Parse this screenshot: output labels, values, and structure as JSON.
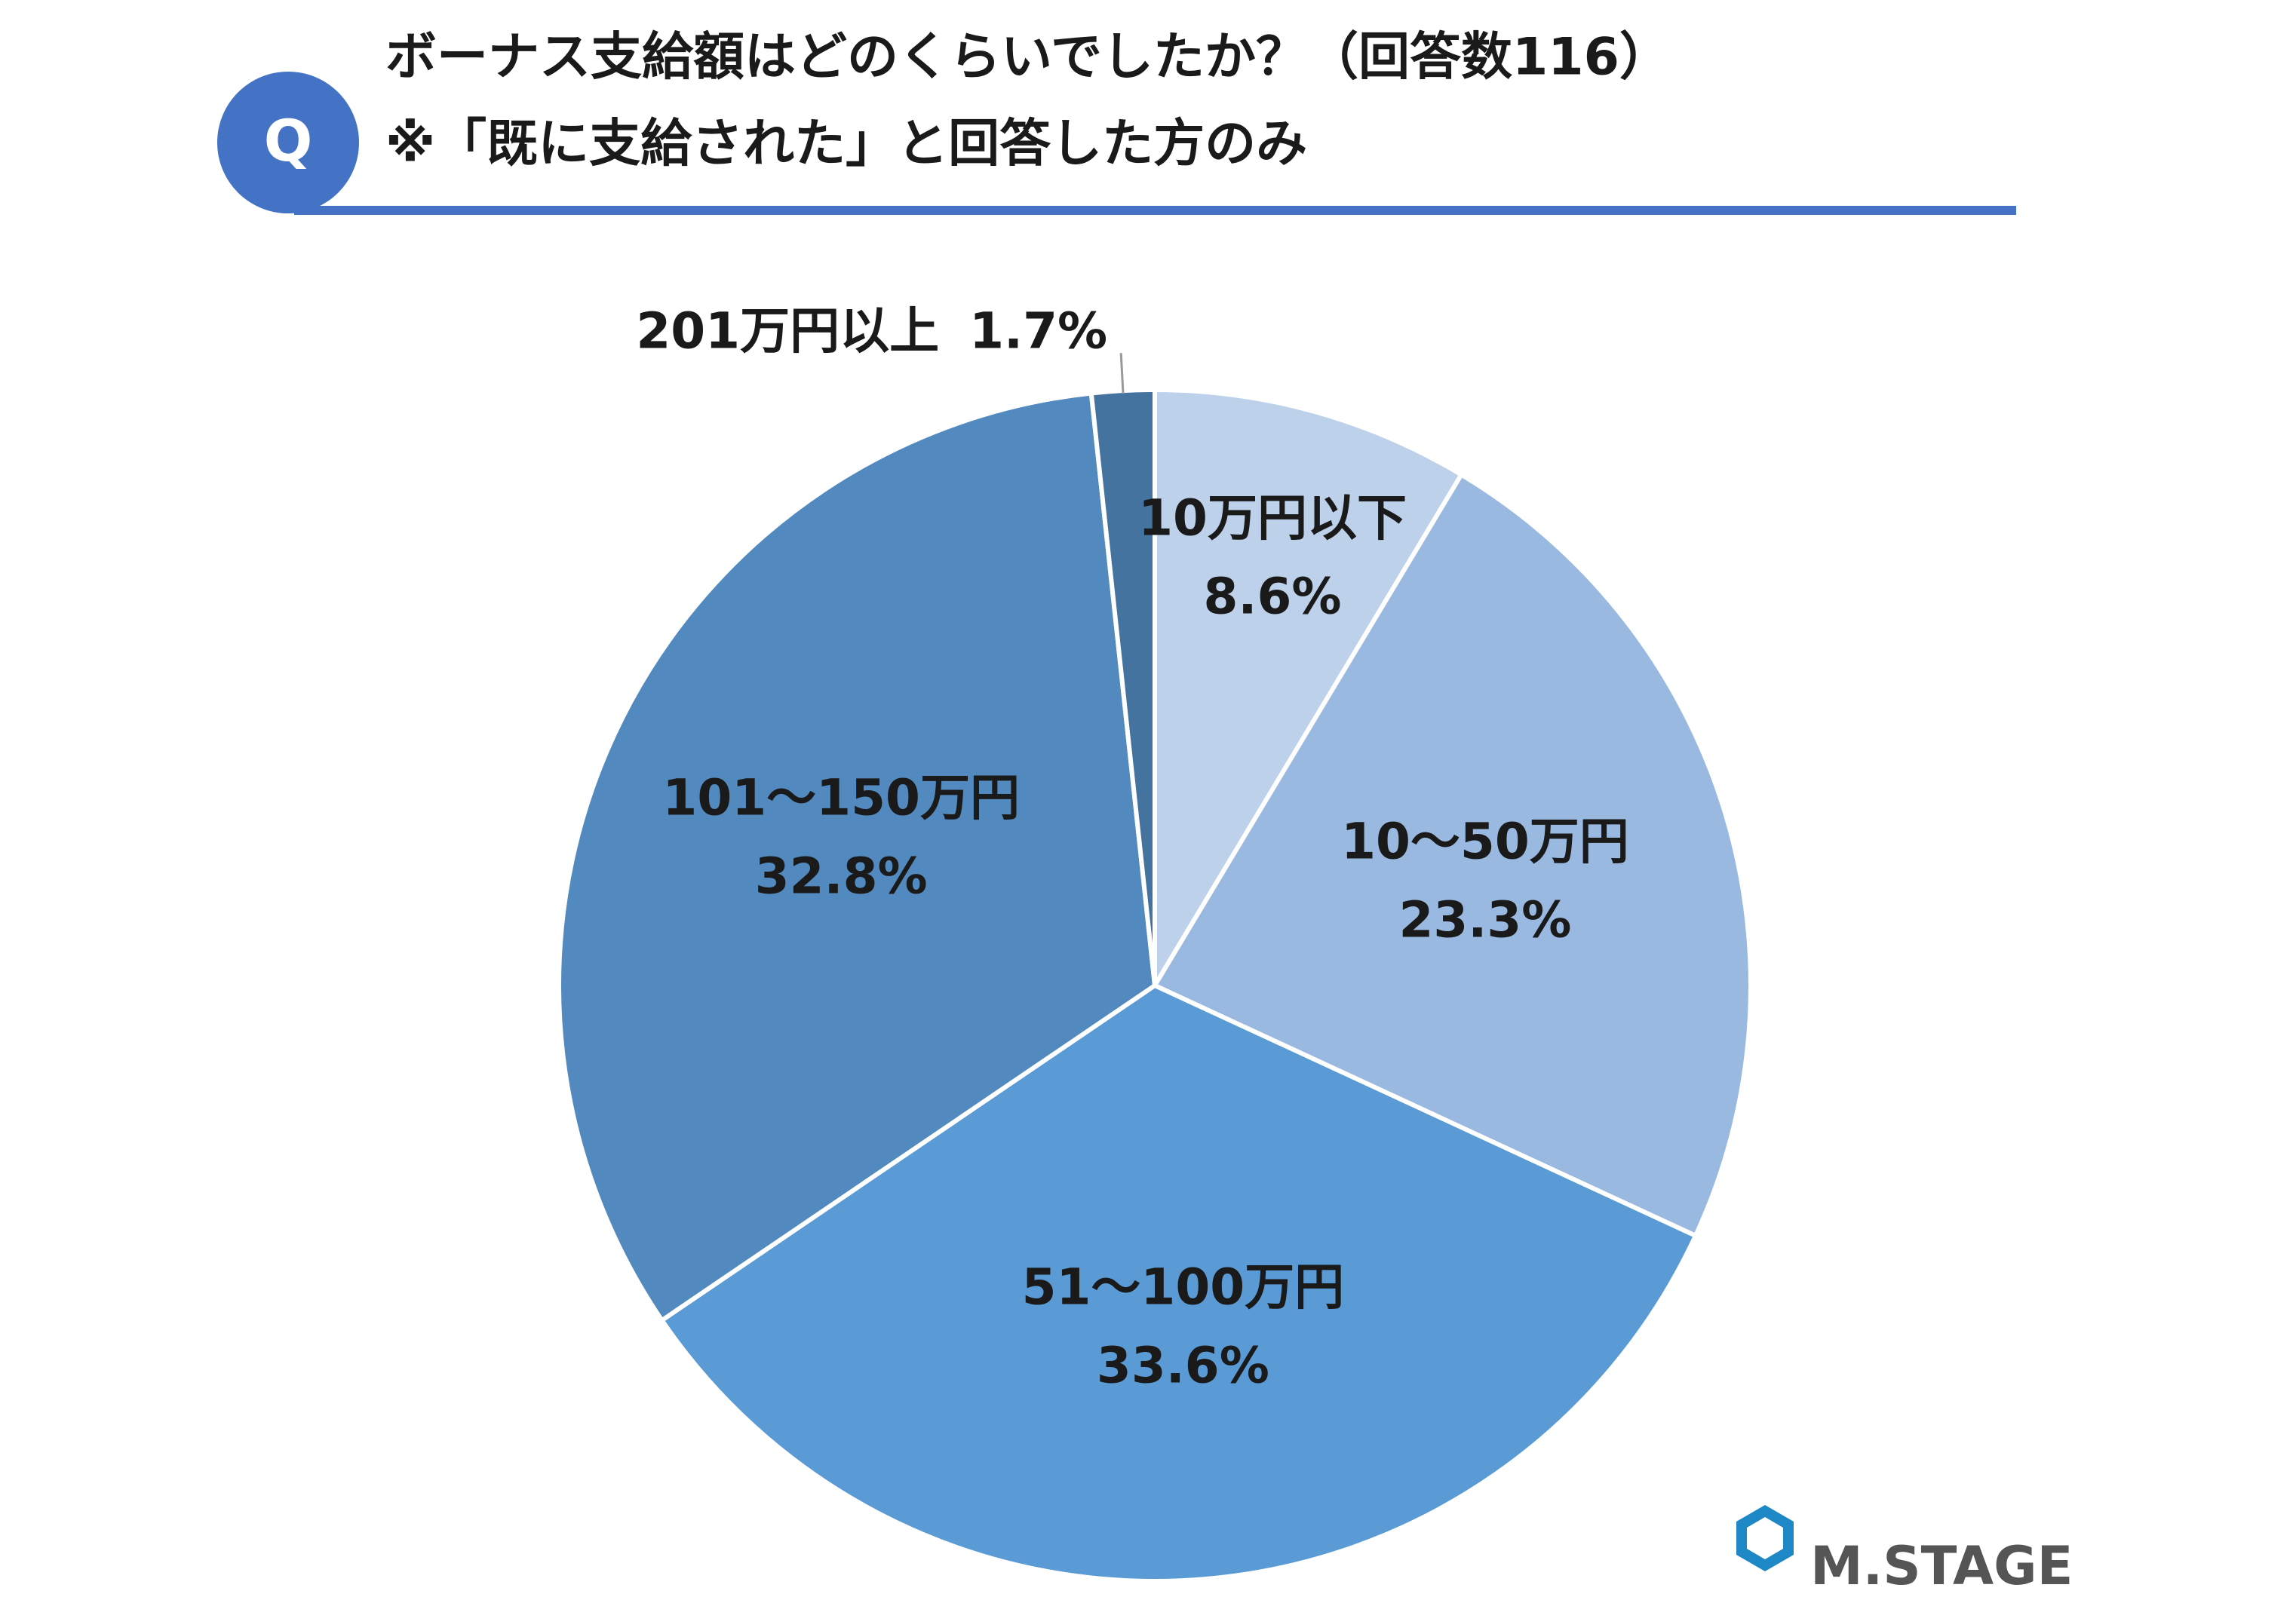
{
  "header": {
    "badge": "Q",
    "title": "ボーナス支給額はどのくらいでしたか？（回答数116）",
    "subtitle": "※「既に支給された」と回答した方のみ"
  },
  "chart_data": {
    "type": "pie",
    "categories": [
      "10万円以下",
      "10～50万円",
      "51～100万円",
      "101～150万円",
      "201万円以上"
    ],
    "values": [
      8.6,
      23.3,
      33.6,
      32.8,
      1.7
    ],
    "value_labels": [
      "8.6%",
      "23.3%",
      "33.6%",
      "32.8%",
      "1.7%"
    ],
    "colors": [
      "#bdd1ea",
      "#9ab9e0",
      "#5b9bd5",
      "#528ac0",
      "#44739f"
    ]
  },
  "footer": {
    "logo": "M.STAGE"
  }
}
